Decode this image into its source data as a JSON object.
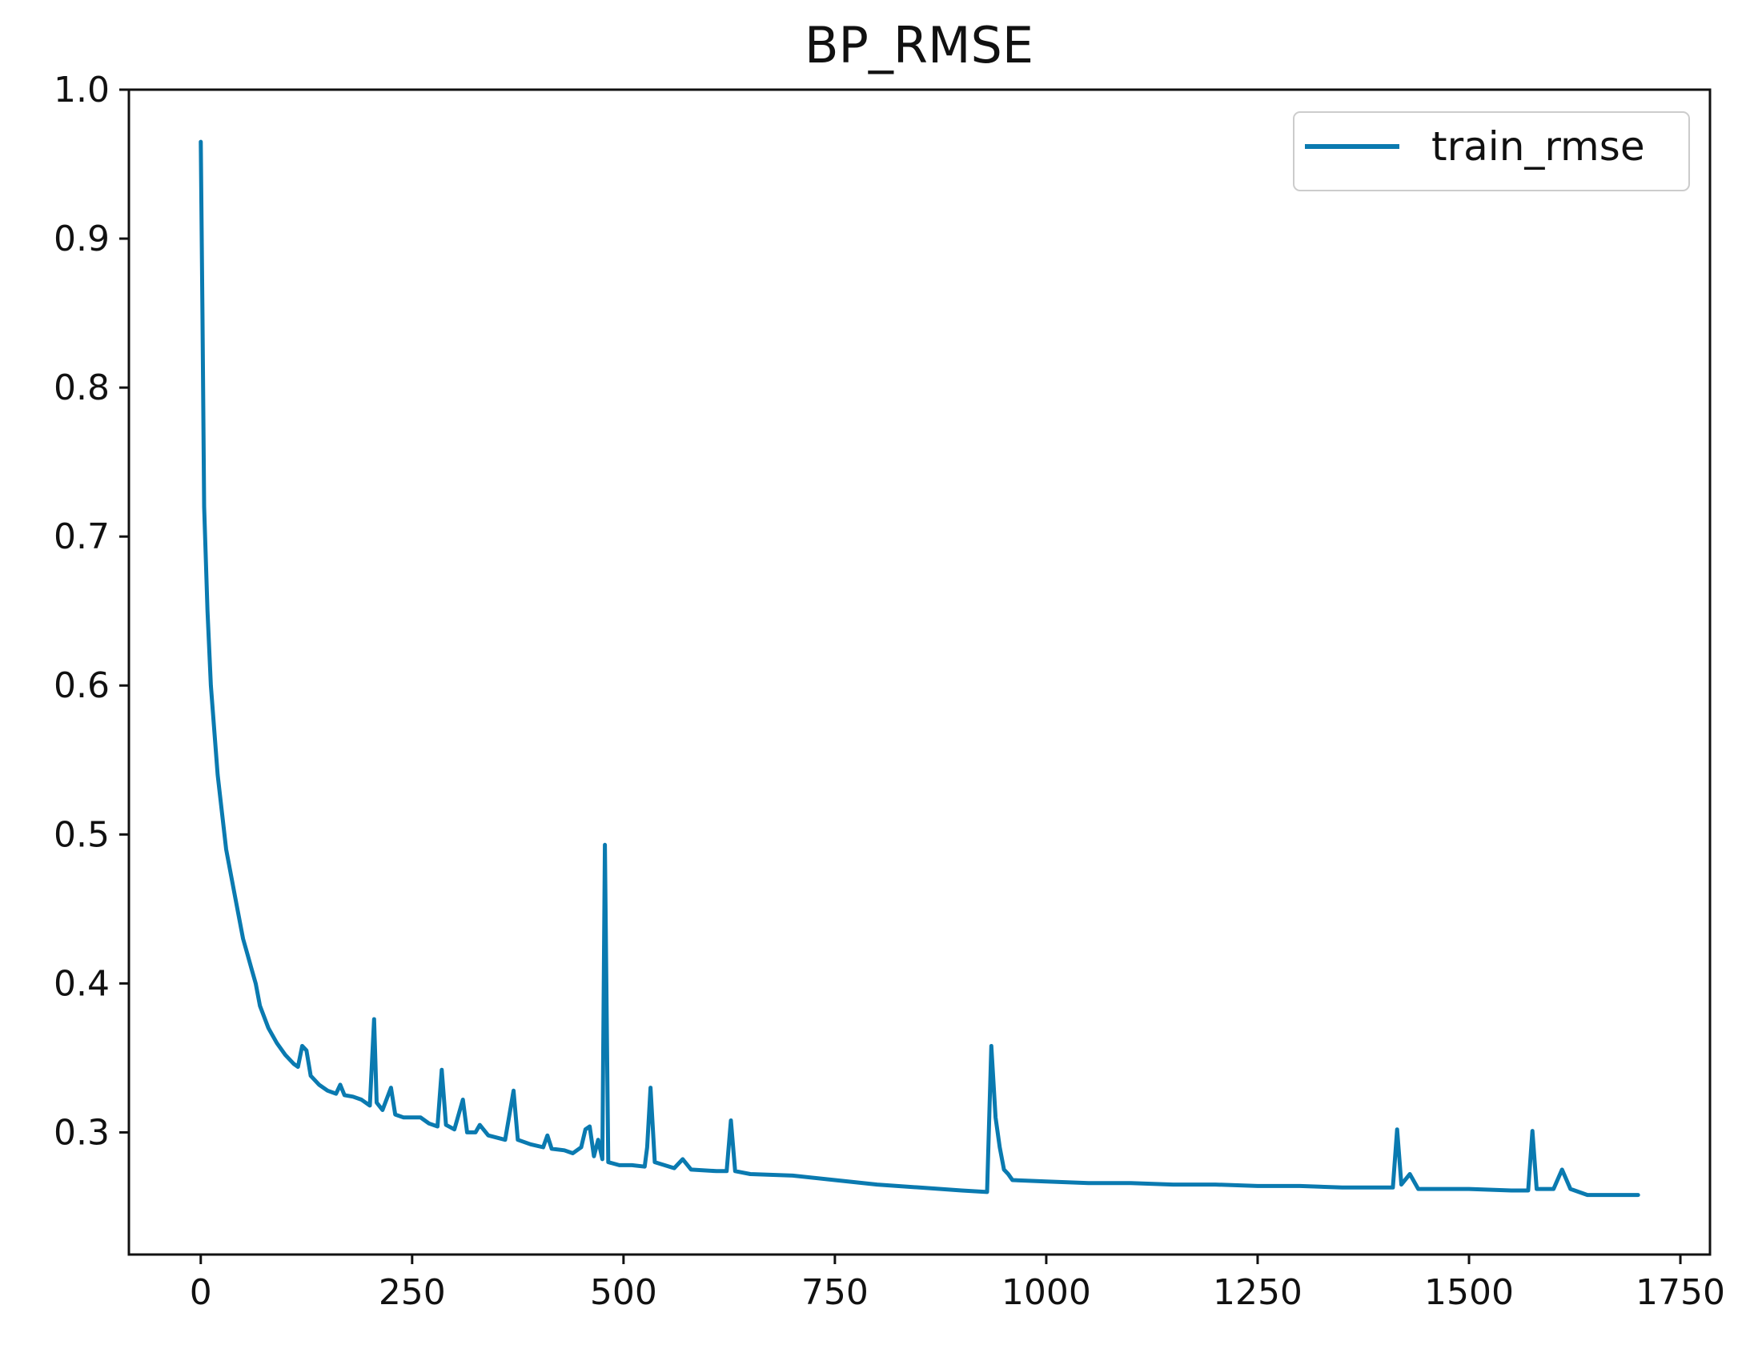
{
  "chart_data": {
    "type": "line",
    "title": "BP_RMSE",
    "xlabel": "",
    "ylabel": "",
    "xlim": [
      -85,
      1785
    ],
    "ylim": [
      0.218,
      1.0
    ],
    "x_ticks": [
      0,
      250,
      500,
      750,
      1000,
      1250,
      1500,
      1750
    ],
    "y_ticks": [
      0.3,
      0.4,
      0.5,
      0.6,
      0.7,
      0.8,
      0.9,
      1.0
    ],
    "x_tick_labels": [
      "0",
      "250",
      "500",
      "750",
      "1000",
      "1250",
      "1500",
      "1750"
    ],
    "y_tick_labels": [
      "0.3",
      "0.4",
      "0.5",
      "0.6",
      "0.7",
      "0.8",
      "0.9",
      "1.0"
    ],
    "grid": false,
    "legend_position": "top-right",
    "series": [
      {
        "name": "train_rmse",
        "color": "#0a7ab0",
        "points": [
          [
            0,
            0.965
          ],
          [
            2,
            0.85
          ],
          [
            4,
            0.72
          ],
          [
            8,
            0.65
          ],
          [
            12,
            0.6
          ],
          [
            20,
            0.54
          ],
          [
            30,
            0.49
          ],
          [
            40,
            0.46
          ],
          [
            50,
            0.43
          ],
          [
            55,
            0.42
          ],
          [
            60,
            0.41
          ],
          [
            65,
            0.4
          ],
          [
            70,
            0.385
          ],
          [
            80,
            0.37
          ],
          [
            90,
            0.36
          ],
          [
            100,
            0.352
          ],
          [
            110,
            0.346
          ],
          [
            115,
            0.344
          ],
          [
            120,
            0.358
          ],
          [
            125,
            0.355
          ],
          [
            130,
            0.338
          ],
          [
            140,
            0.332
          ],
          [
            150,
            0.328
          ],
          [
            160,
            0.326
          ],
          [
            165,
            0.332
          ],
          [
            170,
            0.325
          ],
          [
            180,
            0.324
          ],
          [
            190,
            0.322
          ],
          [
            200,
            0.318
          ],
          [
            205,
            0.376
          ],
          [
            208,
            0.32
          ],
          [
            215,
            0.315
          ],
          [
            225,
            0.33
          ],
          [
            230,
            0.312
          ],
          [
            240,
            0.31
          ],
          [
            250,
            0.31
          ],
          [
            260,
            0.31
          ],
          [
            270,
            0.306
          ],
          [
            280,
            0.304
          ],
          [
            285,
            0.342
          ],
          [
            290,
            0.305
          ],
          [
            300,
            0.302
          ],
          [
            310,
            0.322
          ],
          [
            315,
            0.3
          ],
          [
            325,
            0.3
          ],
          [
            330,
            0.305
          ],
          [
            340,
            0.298
          ],
          [
            360,
            0.295
          ],
          [
            370,
            0.328
          ],
          [
            375,
            0.295
          ],
          [
            390,
            0.292
          ],
          [
            405,
            0.29
          ],
          [
            410,
            0.298
          ],
          [
            415,
            0.289
          ],
          [
            430,
            0.288
          ],
          [
            440,
            0.286
          ],
          [
            450,
            0.29
          ],
          [
            455,
            0.302
          ],
          [
            460,
            0.304
          ],
          [
            465,
            0.284
          ],
          [
            470,
            0.295
          ],
          [
            475,
            0.282
          ],
          [
            478,
            0.493
          ],
          [
            482,
            0.28
          ],
          [
            495,
            0.278
          ],
          [
            510,
            0.278
          ],
          [
            525,
            0.277
          ],
          [
            528,
            0.29
          ],
          [
            532,
            0.33
          ],
          [
            537,
            0.28
          ],
          [
            560,
            0.276
          ],
          [
            570,
            0.282
          ],
          [
            580,
            0.275
          ],
          [
            610,
            0.274
          ],
          [
            622,
            0.274
          ],
          [
            627,
            0.308
          ],
          [
            632,
            0.274
          ],
          [
            650,
            0.272
          ],
          [
            700,
            0.271
          ],
          [
            750,
            0.268
          ],
          [
            800,
            0.265
          ],
          [
            850,
            0.263
          ],
          [
            900,
            0.261
          ],
          [
            930,
            0.26
          ],
          [
            935,
            0.358
          ],
          [
            940,
            0.31
          ],
          [
            945,
            0.29
          ],
          [
            950,
            0.275
          ],
          [
            955,
            0.272
          ],
          [
            960,
            0.268
          ],
          [
            1000,
            0.267
          ],
          [
            1050,
            0.266
          ],
          [
            1100,
            0.266
          ],
          [
            1150,
            0.265
          ],
          [
            1200,
            0.265
          ],
          [
            1250,
            0.264
          ],
          [
            1300,
            0.264
          ],
          [
            1350,
            0.263
          ],
          [
            1400,
            0.263
          ],
          [
            1410,
            0.263
          ],
          [
            1415,
            0.302
          ],
          [
            1420,
            0.265
          ],
          [
            1430,
            0.272
          ],
          [
            1440,
            0.262
          ],
          [
            1500,
            0.262
          ],
          [
            1550,
            0.261
          ],
          [
            1570,
            0.261
          ],
          [
            1575,
            0.301
          ],
          [
            1580,
            0.262
          ],
          [
            1600,
            0.262
          ],
          [
            1610,
            0.275
          ],
          [
            1620,
            0.262
          ],
          [
            1640,
            0.258
          ],
          [
            1670,
            0.258
          ],
          [
            1700,
            0.258
          ]
        ]
      }
    ]
  }
}
